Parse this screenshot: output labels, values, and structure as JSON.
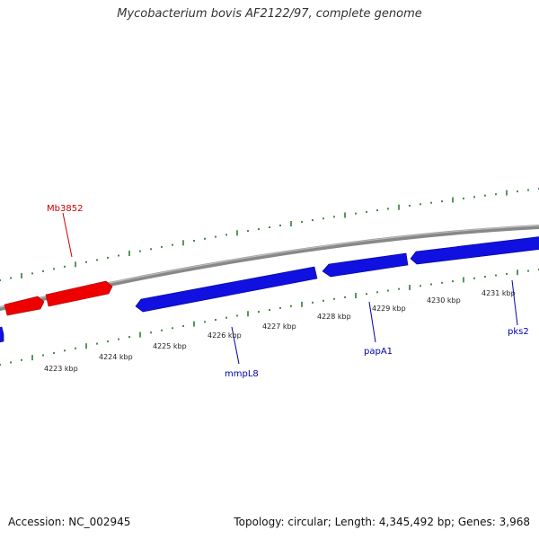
{
  "title": "Mycobacterium bovis AF2122/97, complete genome",
  "accession_text": "Accession: NC_002945",
  "summary_text": "Topology: circular; Length: 4,345,492 bp; Genes: 3,968",
  "colors": {
    "forward_gene": "#ee0000",
    "reverse_gene": "#1010e0",
    "backbone": "#888888",
    "tick": "#2e7d32",
    "forward_label": "#cc0000",
    "reverse_label": "#0000aa"
  },
  "scale": {
    "unit": "kbp",
    "labels": [
      "4223 kbp",
      "4224 kbp",
      "4225 kbp",
      "4226 kbp",
      "4227 kbp",
      "4228 kbp",
      "4229 kbp",
      "4230 kbp",
      "4231 kbp"
    ]
  },
  "genes": [
    {
      "name": "Mb3852",
      "strand": "forward"
    },
    {
      "name": "mmpL8",
      "strand": "reverse"
    },
    {
      "name": "papA1",
      "strand": "reverse"
    },
    {
      "name": "pks2",
      "strand": "reverse"
    }
  ]
}
